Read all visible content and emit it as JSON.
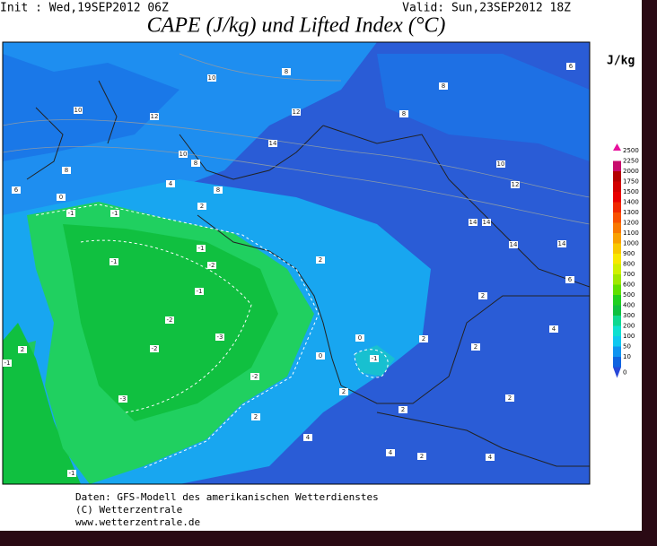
{
  "header": {
    "init": "Init : Wed,19SEP2012 06Z",
    "valid": "Valid: Sun,23SEP2012 18Z",
    "title": "CAPE (J/kg) und Lifted Index (°C)"
  },
  "colorbar": {
    "unit": "J/kg",
    "levels": [
      {
        "label": "2500",
        "color": "#e8109c"
      },
      {
        "label": "2250",
        "color": "#c80c6c"
      },
      {
        "label": "2000",
        "color": "#b40000"
      },
      {
        "label": "1750",
        "color": "#d20000"
      },
      {
        "label": "1500",
        "color": "#e80000"
      },
      {
        "label": "1400",
        "color": "#f02800"
      },
      {
        "label": "1300",
        "color": "#f85000"
      },
      {
        "label": "1200",
        "color": "#f87800"
      },
      {
        "label": "1100",
        "color": "#f8a000"
      },
      {
        "label": "1000",
        "color": "#f8c800"
      },
      {
        "label": "900",
        "color": "#f8e800"
      },
      {
        "label": "800",
        "color": "#d0f000"
      },
      {
        "label": "700",
        "color": "#a0e800"
      },
      {
        "label": "600",
        "color": "#60e000"
      },
      {
        "label": "500",
        "color": "#20d020"
      },
      {
        "label": "400",
        "color": "#10c040"
      },
      {
        "label": "300",
        "color": "#10d890"
      },
      {
        "label": "200",
        "color": "#10e0d0"
      },
      {
        "label": "100",
        "color": "#10c8f0"
      },
      {
        "label": "50",
        "color": "#1094f0"
      },
      {
        "label": "10",
        "color": "#1064e0"
      },
      {
        "label": "0",
        "color": "#2848d8"
      }
    ]
  },
  "map": {
    "contour_labels": [
      "10",
      "8",
      "12",
      "10",
      "12",
      "8",
      "8",
      "6",
      "14",
      "10",
      "8",
      "8",
      "4",
      "6",
      "0",
      "-1",
      "-1",
      "2",
      "8",
      "10",
      "12",
      "14",
      "14",
      "14",
      "14",
      "-1",
      "-1",
      "-2",
      "-1",
      "-2",
      "-3",
      "-2",
      "-2",
      "-3",
      "2",
      "0",
      "0",
      "-1",
      "2",
      "2",
      "4",
      "6",
      "2",
      "2",
      "2",
      "2",
      "2",
      "4",
      "4",
      "2",
      "4",
      "-1",
      "2",
      "-1"
    ]
  },
  "footer": {
    "lines": [
      "Daten: GFS-Modell des amerikanischen Wetterdienstes",
      "(C) Wetterzentrale",
      "www.wetterzentrale.de"
    ]
  }
}
